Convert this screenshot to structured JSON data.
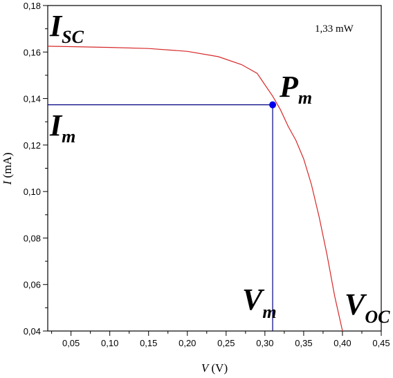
{
  "chart_data": {
    "type": "line",
    "xlabel": {
      "var": "V",
      "unit": " (V)"
    },
    "ylabel": {
      "var": "I",
      "unit": " (mA)"
    },
    "xlim": [
      0.02,
      0.45
    ],
    "ylim": [
      0.04,
      0.18
    ],
    "x_ticks": [
      0.05,
      0.1,
      0.15,
      0.2,
      0.25,
      0.3,
      0.35,
      0.4,
      0.45
    ],
    "x_tick_labels": [
      "0,05",
      "0,10",
      "0,15",
      "0,20",
      "0,25",
      "0,30",
      "0,35",
      "0,40",
      "0,45"
    ],
    "y_ticks": [
      0.04,
      0.06,
      0.08,
      0.1,
      0.12,
      0.14,
      0.16,
      0.18
    ],
    "y_tick_labels": [
      "0,04",
      "0,06",
      "0,08",
      "0,10",
      "0,12",
      "0,14",
      "0,16",
      "0,18"
    ],
    "grid": false,
    "series": [
      {
        "color": "#d62728",
        "x": [
          0.02,
          0.05,
          0.1,
          0.15,
          0.2,
          0.24,
          0.27,
          0.29,
          0.31,
          0.32,
          0.33,
          0.34,
          0.35,
          0.36,
          0.37,
          0.38,
          0.39,
          0.4
        ],
        "y": [
          0.1625,
          0.1623,
          0.162,
          0.1615,
          0.1603,
          0.158,
          0.1546,
          0.1508,
          0.141,
          0.1352,
          0.128,
          0.122,
          0.114,
          0.103,
          0.089,
          0.073,
          0.055,
          0.04
        ]
      }
    ],
    "max_power_point": {
      "x": 0.31,
      "y": 0.1373,
      "color": "#0000ee"
    },
    "guide_color": "#000080",
    "annotations": {
      "isc": {
        "main": "I",
        "sub": "SC"
      },
      "im": {
        "main": "I",
        "sub": "m"
      },
      "pm": {
        "main": "P",
        "sub": "m"
      },
      "vm": {
        "main": "V",
        "sub": "m"
      },
      "voc": {
        "main": "V",
        "sub": "OC"
      },
      "power": "1,33 mW"
    }
  }
}
